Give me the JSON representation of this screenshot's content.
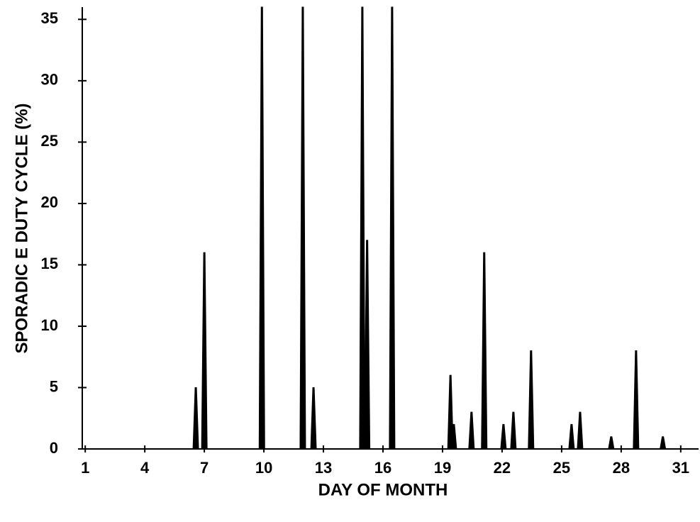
{
  "chart_data": {
    "type": "bar",
    "xlabel": "DAY OF MONTH",
    "ylabel": "SPORADIC E DUTY CYCLE (%)",
    "x": [
      6.57,
      7.0,
      9.9,
      11.96,
      12.5,
      14.96,
      15.2,
      16.46,
      19.4,
      19.57,
      20.46,
      21.1,
      22.07,
      22.57,
      23.46,
      25.5,
      25.93,
      27.5,
      28.75,
      30.1
    ],
    "values": [
      5,
      16,
      36,
      36,
      5,
      36,
      17,
      36,
      6,
      2,
      3,
      16,
      2,
      3,
      8,
      2,
      3,
      1,
      8,
      1
    ],
    "color": "#000000",
    "xlim": [
      0.85,
      31.9
    ],
    "xticks": [
      1,
      4,
      7,
      10,
      13,
      16,
      19,
      22,
      25,
      28,
      31
    ],
    "ylim": [
      0,
      36
    ],
    "yticks": [
      0,
      5,
      10,
      15,
      20,
      25,
      30,
      35
    ],
    "grid": false
  }
}
